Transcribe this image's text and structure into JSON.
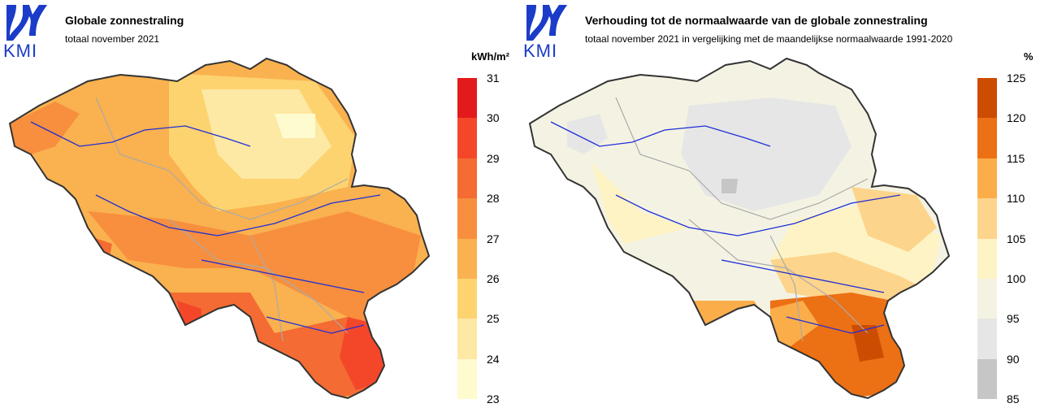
{
  "left_panel": {
    "logo_text": "KMI",
    "title": "Globale zonnestraling",
    "subtitle": "totaal november 2021",
    "legend": {
      "unit": "kWh/m²",
      "ticks": [
        "31",
        "30",
        "29",
        "28",
        "27",
        "26",
        "25",
        "24",
        "23"
      ],
      "colors": [
        "#e31a1c",
        "#f4472a",
        "#f46b33",
        "#f78f3e",
        "#fab14f",
        "#fdd370",
        "#fde8a4",
        "#fefbcf"
      ]
    }
  },
  "right_panel": {
    "logo_text": "KMI",
    "title": "Verhouding tot de normaalwaarde van de globale zonnestraling",
    "subtitle": "totaal november 2021 in vergelijking met de maandelijkse normaalwaarde 1991-2020",
    "legend": {
      "unit": "%",
      "ticks": [
        "125",
        "120",
        "115",
        "110",
        "105",
        "100",
        "95",
        "90",
        "85"
      ],
      "colors": [
        "#cc4c02",
        "#ec7014",
        "#fbad4a",
        "#fdd48b",
        "#fef3c4",
        "#f4f3e3",
        "#e6e6e6",
        "#c6c6c6"
      ]
    }
  }
}
